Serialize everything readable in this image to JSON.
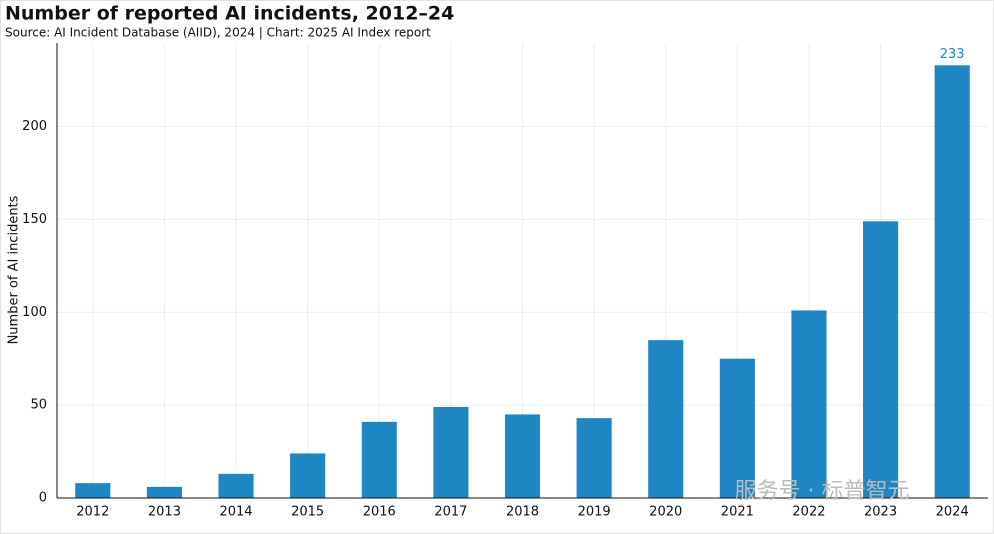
{
  "chart_data": {
    "type": "bar",
    "title": "Number of reported AI incidents, 2012–24",
    "subtitle": "Source: AI Incident Database (AIID), 2024 | Chart: 2025 AI Index report",
    "y_label": "Number of AI incidents",
    "watermark": "服务号 · 标普智元",
    "categories": [
      "2012",
      "2013",
      "2014",
      "2015",
      "2016",
      "2017",
      "2018",
      "2019",
      "2020",
      "2021",
      "2022",
      "2023",
      "2024"
    ],
    "values": [
      8,
      6,
      13,
      24,
      41,
      49,
      45,
      43,
      85,
      75,
      101,
      149,
      233
    ],
    "value_labels": [
      null,
      null,
      null,
      null,
      null,
      null,
      null,
      null,
      null,
      null,
      null,
      null,
      "233"
    ],
    "color": "#1f86c4",
    "ylim": [
      0,
      245
    ],
    "yticks": [
      0,
      50,
      100,
      150,
      200
    ],
    "grid": true
  }
}
